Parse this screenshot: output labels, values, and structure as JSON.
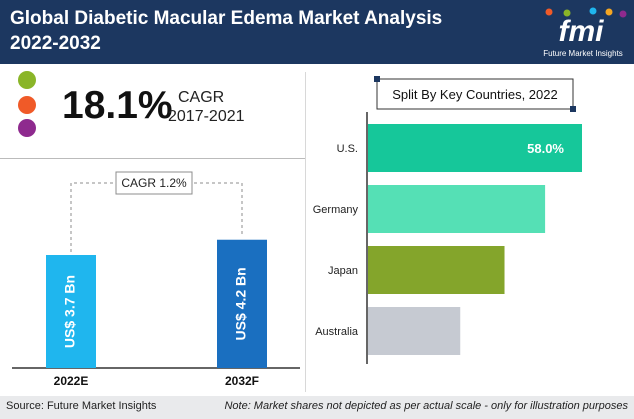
{
  "header": {
    "title_line1": "Global Diabetic Macular Edema Market Analysis",
    "title_line2": "2022-2032",
    "logo_text": "fmi",
    "logo_subtext": "Future Market Insights"
  },
  "colors": {
    "header_bg": "#1c3760",
    "dot_green": "#8ab528",
    "dot_orange": "#f05a28",
    "dot_purple": "#8e2a8e",
    "bar_light_blue": "#1fb6ee",
    "bar_green": "#76a22e",
    "bar_dark_blue": "#1a6fc0",
    "us": "#16c79a",
    "germany": "#55e0b5",
    "japan": "#84a52b",
    "australia": "#c6cad2"
  },
  "summary": {
    "cagr_value": "18.1%",
    "cagr_label": "CAGR",
    "cagr_period": "2017-2021"
  },
  "chart_data": [
    {
      "type": "bar",
      "categories": [
        "2022E",
        "2032F"
      ],
      "values": [
        3.7,
        4.2
      ],
      "value_labels": [
        "US$ 3.7 Bn",
        "US$ 4.2 Bn"
      ],
      "annotation": "CAGR 1.2%"
    },
    {
      "type": "bar",
      "orientation": "horizontal",
      "title": "Split By Key Countries, 2022",
      "categories": [
        "U.S.",
        "Germany",
        "Japan",
        "Australia"
      ],
      "values": [
        58.0,
        48,
        37,
        25
      ],
      "value_labels": [
        "58.0%",
        "",
        "",
        ""
      ]
    }
  ],
  "footer": {
    "source": "Source: Future Market Insights",
    "note": "Note: Market shares not depicted as per actual scale - only for illustration purposes"
  }
}
